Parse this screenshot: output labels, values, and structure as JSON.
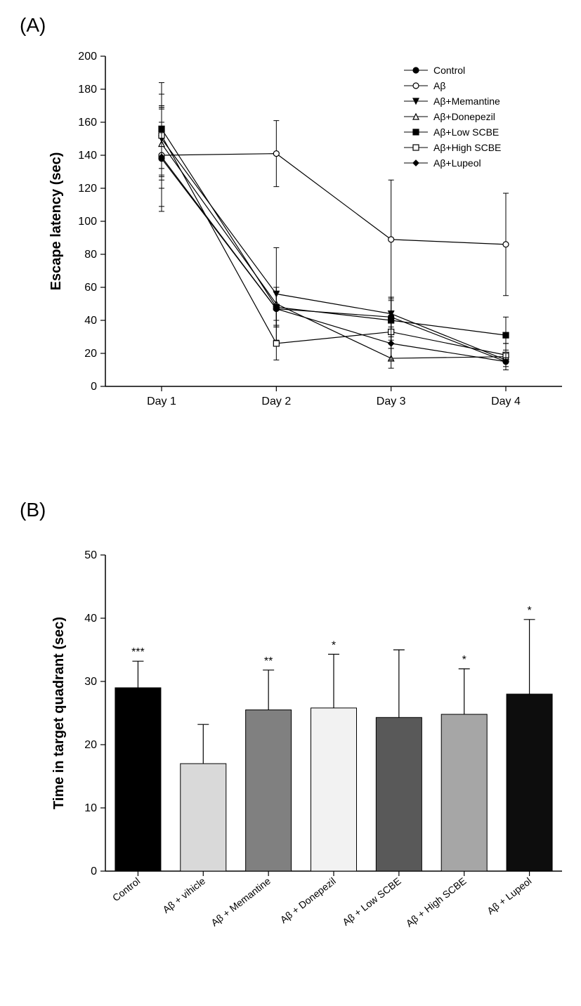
{
  "panelA": {
    "label": "(A)",
    "type": "line",
    "xlabel_categories": [
      "Day 1",
      "Day 2",
      "Day 3",
      "Day 4"
    ],
    "ylabel": "Escape latency (sec)",
    "ylim": [
      0,
      200
    ],
    "ytick_step": 20,
    "label_fontsize": 20,
    "tick_fontsize": 16,
    "legend_fontsize": 14,
    "axis_color": "#000000",
    "line_width": 1.2,
    "marker_size": 8,
    "errorbar_width": 8,
    "background_color": "#ffffff",
    "series": [
      {
        "name": "Control",
        "marker": "circle",
        "fill": "#000000",
        "stroke": "#000000",
        "y": [
          138,
          47,
          42,
          15
        ],
        "err": [
          32,
          10,
          12,
          5
        ]
      },
      {
        "name": "Aβ",
        "marker": "circle",
        "fill": "#ffffff",
        "stroke": "#000000",
        "y": [
          140,
          141,
          89,
          86
        ],
        "err": [
          20,
          20,
          36,
          31
        ]
      },
      {
        "name": "Aβ+Memantine",
        "marker": "triangle-down",
        "fill": "#000000",
        "stroke": "#000000",
        "y": [
          150,
          56,
          44,
          16
        ],
        "err": [
          18,
          28,
          10,
          6
        ]
      },
      {
        "name": "Aβ+Donepezil",
        "marker": "triangle-up",
        "fill": "#ffffff",
        "stroke": "#000000",
        "y": [
          147,
          50,
          17,
          18
        ],
        "err": [
          22,
          10,
          6,
          8
        ]
      },
      {
        "name": "Aβ+Low SCBE",
        "marker": "square",
        "fill": "#000000",
        "stroke": "#000000",
        "y": [
          156,
          48,
          40,
          31
        ],
        "err": [
          28,
          12,
          12,
          11
        ]
      },
      {
        "name": "Aβ+High SCBE",
        "marker": "square",
        "fill": "#ffffff",
        "stroke": "#000000",
        "y": [
          152,
          26,
          33,
          19
        ],
        "err": [
          25,
          10,
          10,
          7
        ]
      },
      {
        "name": "Aβ+Lupeol",
        "marker": "diamond",
        "fill": "#000000",
        "stroke": "#000000",
        "y": [
          139,
          47,
          26,
          15
        ],
        "err": [
          30,
          10,
          10,
          5
        ]
      }
    ]
  },
  "panelB": {
    "label": "(B)",
    "type": "bar",
    "ylabel": "Time in target quadrant (sec)",
    "ylim": [
      0,
      50
    ],
    "ytick_step": 10,
    "label_fontsize": 20,
    "tick_fontsize": 14,
    "bar_border_color": "#000000",
    "bar_border_width": 1,
    "background_color": "#ffffff",
    "bar_width": 0.7,
    "categories": [
      "Control",
      "Aβ  + vihicle",
      "Aβ  + Memantine",
      "Aβ  + Donepezil",
      "Aβ  + Low SCBE",
      "Aβ  + High SCBE",
      "Aβ  + Lupeol"
    ],
    "values": [
      29.0,
      17.0,
      25.5,
      25.8,
      24.3,
      24.8,
      28.0
    ],
    "errors": [
      4.2,
      6.2,
      6.3,
      8.5,
      10.7,
      7.2,
      11.8
    ],
    "sig": [
      "***",
      "",
      "**",
      "*",
      "",
      "*",
      "*"
    ],
    "bar_colors": [
      "#000000",
      "#d9d9d9",
      "#808080",
      "#f2f2f2",
      "#595959",
      "#a6a6a6",
      "#0d0d0d"
    ]
  }
}
